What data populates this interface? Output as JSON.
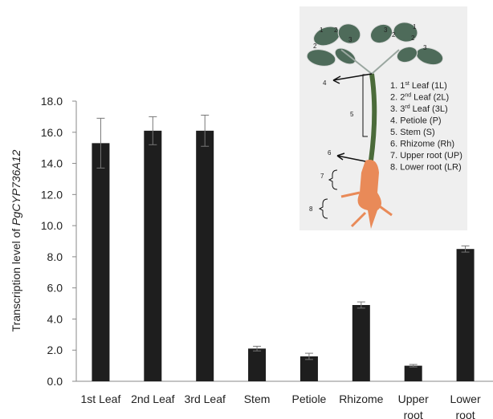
{
  "chart_data": {
    "type": "bar",
    "ylabel": "Transcription level of",
    "ylabel_gene": "PgCYP736A12",
    "categories": [
      "1st Leaf",
      "2nd Leaf",
      "3rd Leaf",
      "Stem",
      "Petiole",
      "Rhizome",
      "Upper root",
      "Lower root"
    ],
    "values": [
      15.3,
      16.1,
      16.1,
      2.1,
      1.6,
      4.9,
      1.0,
      8.5
    ],
    "errors": [
      1.6,
      0.9,
      1.0,
      0.15,
      0.2,
      0.2,
      0.08,
      0.2
    ],
    "color": "#1e1e1e",
    "ylim": [
      0,
      18
    ],
    "yticks": [
      {
        "value": 0,
        "label": "0.0"
      },
      {
        "value": 2,
        "label": "2.0"
      },
      {
        "value": 4,
        "label": "4.0"
      },
      {
        "value": 6,
        "label": "6.0"
      },
      {
        "value": 8,
        "label": "8.0"
      },
      {
        "value": 10,
        "label": "10.0"
      },
      {
        "value": 12,
        "label": "12.0"
      },
      {
        "value": 14,
        "label": "14.0"
      },
      {
        "value": 16,
        "label": "16.0"
      },
      {
        "value": 18,
        "label": "18.0"
      }
    ],
    "grid": false,
    "inset": {
      "legend": [
        {
          "text": "1. 1",
          "sup": "st",
          "rest": "Leaf (1L)"
        },
        {
          "text": "2. 2",
          "sup": "nd",
          "rest": "Leaf (2L)"
        },
        {
          "text": "3. 3",
          "sup": "rd",
          "rest": "Leaf (3L)"
        },
        {
          "text": "4. Petiole (P)"
        },
        {
          "text": "5. Stem (S)"
        },
        {
          "text": "6. Rhizome (Rh)"
        },
        {
          "text": "7. Upper root (UP)"
        },
        {
          "text": "8. Lower root (LR)"
        }
      ],
      "leaf_numbers": [
        "1",
        "2",
        "2",
        "3",
        "3",
        "2",
        "1",
        "2",
        "3"
      ],
      "pointer_numbers": [
        "4",
        "5",
        "6",
        "7",
        "8"
      ]
    }
  }
}
